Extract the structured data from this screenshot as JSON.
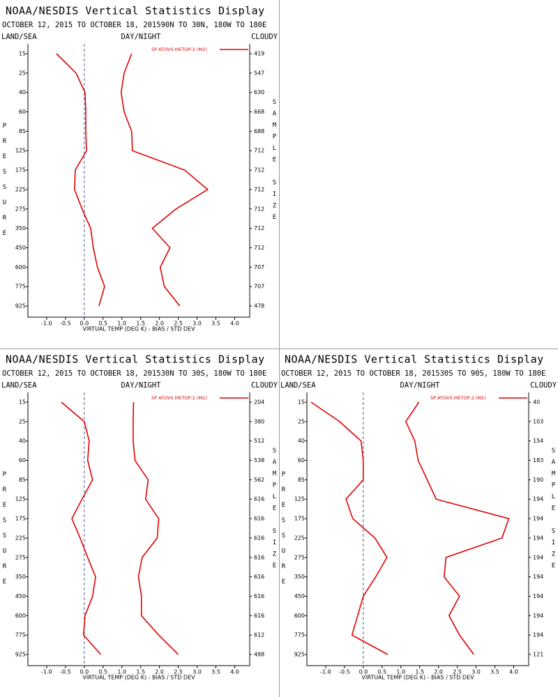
{
  "chart_data": [
    {
      "type": "line",
      "title": "NOAA/NESDIS Vertical Statistics Display",
      "subtitle": "OCTOBER 12, 2015 TO OCTOBER 18, 201590N TO 30N, 180W TO 180E",
      "left_label": "LAND/SEA",
      "center_label": "DAY/NIGHT",
      "right_label": "CLOUDY",
      "y_label": "PRESSURE",
      "y2_label": "SAMPLE SIZE",
      "x_label": "VIRTUAL TEMP (DEG K) - BIAS / STD DEV",
      "legend": "SP ATOVS METOP-2 (M2)",
      "categories": [
        15,
        25,
        40,
        60,
        85,
        125,
        175,
        225,
        275,
        350,
        450,
        600,
        775,
        925
      ],
      "sample_sizes": [
        419,
        547,
        630,
        668,
        688,
        712,
        712,
        712,
        712,
        712,
        712,
        707,
        707,
        478
      ],
      "series": [
        {
          "color": "#e00000",
          "values": [
            -0.74,
            -0.22,
            0.02,
            0.04,
            0.04,
            0.06,
            -0.24,
            -0.26,
            -0.06,
            0.17,
            0.24,
            0.35,
            0.54,
            0.39
          ]
        },
        {
          "color": "#e00000",
          "values": [
            1.26,
            1.06,
            0.98,
            1.06,
            1.26,
            1.28,
            2.67,
            3.28,
            2.44,
            1.81,
            2.28,
            2.02,
            2.13,
            2.54
          ]
        }
      ],
      "xlim": [
        -1.5,
        4.4
      ],
      "xticks": [
        {
          "value": -1,
          "label": "-1.0"
        },
        -0.5,
        {
          "value": 0,
          "label": "0.0"
        },
        0.5,
        {
          "value": 1,
          "label": "1.0"
        },
        1.5,
        {
          "value": 2,
          "label": "2.0"
        },
        2.5,
        {
          "value": 3,
          "label": "3.0"
        },
        3.5,
        {
          "value": 4,
          "label": "4.0"
        }
      ],
      "zero_line": true
    },
    {
      "type": "line",
      "title": "NOAA/NESDIS Vertical Statistics Display",
      "subtitle": "OCTOBER 12, 2015 TO OCTOBER 18, 201530N TO 30S, 180W TO 180E",
      "left_label": "LAND/SEA",
      "center_label": "DAY/NIGHT",
      "right_label": "CLOUDY",
      "y_label": "PRESSURE",
      "y2_label": "SAMPLE SIZE",
      "x_label": "VIRTUAL TEMP (DEG K) - BIAS / STD DEV",
      "legend": "SP ATOVS METOP-2 (M2)",
      "categories": [
        15,
        25,
        40,
        60,
        85,
        125,
        175,
        225,
        275,
        350,
        450,
        600,
        775,
        925
      ],
      "sample_sizes": [
        204,
        380,
        512,
        538,
        562,
        616,
        616,
        616,
        616,
        616,
        616,
        616,
        612,
        488
      ],
      "series": [
        {
          "color": "#e00000",
          "values": [
            -0.61,
            0,
            0.13,
            0.09,
            0.22,
            -0.06,
            -0.33,
            -0.11,
            0.09,
            0.3,
            0.22,
            0.02,
            -0.02,
            0.44
          ]
        },
        {
          "color": "#e00000",
          "values": [
            1.31,
            1.3,
            1.3,
            1.35,
            1.7,
            1.63,
            1.98,
            1.94,
            1.54,
            1.44,
            1.52,
            1.52,
            1.98,
            2.5
          ]
        }
      ],
      "xlim": [
        -1.5,
        4.4
      ],
      "xticks": [
        {
          "value": -1,
          "label": "-1.0"
        },
        -0.5,
        {
          "value": 0,
          "label": "0.0"
        },
        0.5,
        {
          "value": 1,
          "label": "1.0"
        },
        1.5,
        {
          "value": 2,
          "label": "2.0"
        },
        2.5,
        {
          "value": 3,
          "label": "3.0"
        },
        3.5,
        {
          "value": 4,
          "label": "4.0"
        }
      ],
      "zero_line": true
    },
    {
      "type": "line",
      "title": "NOAA/NESDIS Vertical Statistics Display",
      "subtitle": "OCTOBER 12, 2015 TO OCTOBER 18, 201530S TO 90S, 180W TO 180E",
      "left_label": "LAND/SEA",
      "center_label": "DAY/NIGHT",
      "right_label": "CLOUDY",
      "y_label": "PRESSURE",
      "y2_label": "SAMPLE SIZE",
      "x_label": "VIRTUAL TEMP (DEG K) - BIAS / STD DEV",
      "legend": "SP ATOVS METOP-2 (M2)",
      "categories": [
        15,
        25,
        40,
        60,
        85,
        125,
        175,
        225,
        275,
        350,
        450,
        600,
        775,
        925
      ],
      "sample_sizes": [
        40,
        103,
        154,
        183,
        190,
        194,
        194,
        194,
        194,
        194,
        194,
        194,
        194,
        121
      ],
      "series": [
        {
          "color": "#e00000",
          "values": [
            -1.39,
            -0.63,
            -0.06,
            0,
            0,
            -0.46,
            -0.28,
            0.31,
            0.63,
            0.33,
            0,
            -0.15,
            -0.3,
            0.65
          ]
        },
        {
          "color": "#e00000",
          "values": [
            1.48,
            1.13,
            1.37,
            1.46,
            1.7,
            1.94,
            3.87,
            3.69,
            2.2,
            2.15,
            2.56,
            2.28,
            2.56,
            2.94
          ]
        }
      ],
      "xlim": [
        -1.5,
        4.4
      ],
      "xticks": [
        {
          "value": -1,
          "label": "-1.0"
        },
        -0.5,
        {
          "value": 0,
          "label": "0.0"
        },
        0.5,
        {
          "value": 1,
          "label": "1.0"
        },
        1.5,
        {
          "value": 2,
          "label": "2.0"
        },
        2.5,
        {
          "value": 3,
          "label": "3.0"
        },
        3.5,
        {
          "value": 4,
          "label": "4.0"
        }
      ],
      "zero_line": true
    }
  ]
}
